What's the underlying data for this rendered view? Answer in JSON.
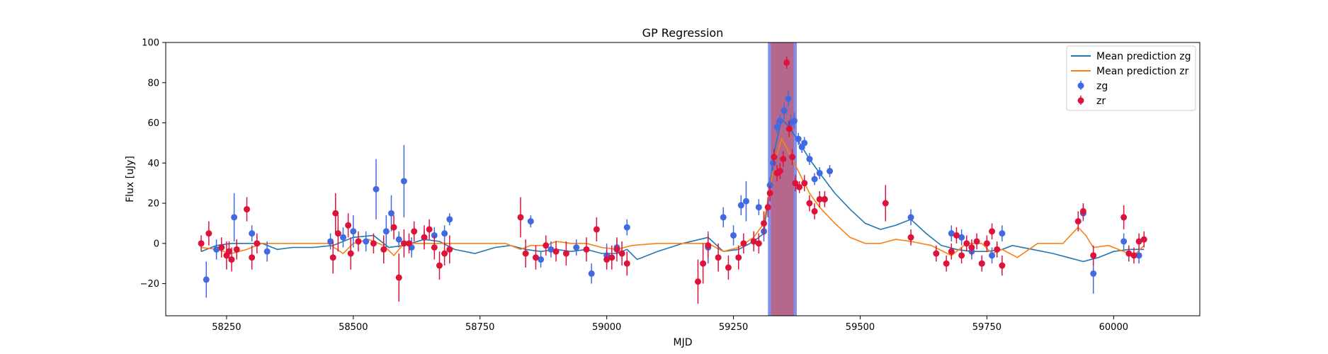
{
  "chart_data": {
    "type": "scatter",
    "title": "GP Regression",
    "xlabel": "MJD",
    "ylabel": "Flux [uJy]",
    "xlim": [
      58130,
      60170
    ],
    "ylim": [
      -36,
      100
    ],
    "xticks": [
      58250,
      58500,
      58750,
      59000,
      59250,
      59500,
      59750,
      60000
    ],
    "yticks": [
      -20,
      0,
      20,
      40,
      60,
      80,
      100
    ],
    "grid": false,
    "legend_position": "top-right",
    "legend": [
      "Mean prediction zg",
      "Mean prediction zr",
      "zg",
      "zr"
    ],
    "shaded_regions": [
      {
        "x0": 59318,
        "x1": 59375,
        "color": "#6a7ef0"
      },
      {
        "x0": 59324,
        "x1": 59369,
        "color": "#c0607a"
      }
    ],
    "series": [
      {
        "name": "Mean prediction zg",
        "kind": "line",
        "color": "#1f77b4",
        "x": [
          58200,
          58230,
          58260,
          58290,
          58320,
          58350,
          58380,
          58420,
          58460,
          58500,
          58540,
          58570,
          58600,
          58640,
          58670,
          58700,
          58740,
          58780,
          58810,
          58840,
          58870,
          58900,
          58930,
          58960,
          58990,
          59020,
          59040,
          59060,
          59100,
          59150,
          59200,
          59230,
          59260,
          59290,
          59310,
          59330,
          59345,
          59360,
          59380,
          59400,
          59420,
          59450,
          59480,
          59510,
          59540,
          59570,
          59600,
          59630,
          59660,
          59690,
          59720,
          59750,
          59780,
          59800,
          59840,
          59880,
          59910,
          59940,
          59970,
          60000,
          60030,
          60060
        ],
        "y": [
          -4,
          -1,
          0,
          0,
          0,
          -3,
          -2,
          -2,
          -1,
          3,
          4,
          -2,
          -1,
          2,
          1,
          -3,
          -5,
          -2,
          -1,
          -3,
          -4,
          -3,
          -4,
          -3,
          -5,
          -5,
          -3,
          -8,
          -4,
          0,
          3,
          -4,
          -3,
          1,
          5,
          45,
          62,
          58,
          50,
          42,
          35,
          25,
          17,
          10,
          7,
          9,
          12,
          5,
          -1,
          -3,
          -4,
          -4,
          -3,
          -1,
          -3,
          -5,
          -7,
          -9,
          -7,
          -4,
          -3,
          -3
        ]
      },
      {
        "name": "Mean prediction zr",
        "kind": "line",
        "color": "#ff7f0e",
        "x": [
          58200,
          58230,
          58260,
          58290,
          58320,
          58350,
          58400,
          58450,
          58480,
          58500,
          58530,
          58560,
          58580,
          58600,
          58640,
          58670,
          58700,
          58750,
          58800,
          58830,
          58850,
          58880,
          58900,
          58930,
          58960,
          58990,
          59020,
          59050,
          59100,
          59150,
          59200,
          59230,
          59260,
          59290,
          59310,
          59330,
          59345,
          59360,
          59380,
          59400,
          59420,
          59450,
          59480,
          59510,
          59540,
          59570,
          59600,
          59640,
          59680,
          59710,
          59740,
          59760,
          59780,
          59810,
          59850,
          59900,
          59930,
          59945,
          59960,
          59990,
          60020,
          60040,
          60060
        ],
        "y": [
          -2,
          -3,
          -5,
          -3,
          0,
          0,
          0,
          0,
          -5,
          0,
          2,
          -1,
          -6,
          0,
          0,
          0,
          0,
          0,
          0,
          -3,
          -1,
          -1,
          1,
          0,
          0,
          -2,
          -3,
          -1,
          0,
          0,
          0,
          -4,
          -2,
          3,
          10,
          40,
          52,
          45,
          35,
          25,
          18,
          10,
          3,
          0,
          0,
          2,
          1,
          -1,
          -6,
          0,
          0,
          -5,
          -3,
          -7,
          0,
          0,
          8,
          4,
          -2,
          -1,
          -4,
          -6,
          -1
        ]
      },
      {
        "name": "zg",
        "kind": "errorbar",
        "color": "#4169e1",
        "x": [
          58210,
          58230,
          58265,
          58300,
          58330,
          58455,
          58480,
          58500,
          58525,
          58545,
          58565,
          58575,
          58590,
          58600,
          58615,
          58640,
          58660,
          58680,
          58690,
          58850,
          58870,
          58890,
          58940,
          58970,
          59000,
          59020,
          59040,
          59200,
          59230,
          59250,
          59265,
          59275,
          59300,
          59310,
          59322,
          59328,
          59336,
          59342,
          59350,
          59358,
          59363,
          59370,
          59378,
          59385,
          59390,
          59400,
          59410,
          59420,
          59430,
          59440,
          59600,
          59680,
          59700,
          59720,
          59740,
          59760,
          59780,
          59940,
          59960,
          60020,
          60050
        ],
        "y": [
          -18,
          -3,
          13,
          5,
          -4,
          1,
          3,
          6,
          1,
          27,
          6,
          15,
          2,
          31,
          -2,
          3,
          4,
          5,
          12,
          11,
          -8,
          -3,
          -2,
          -15,
          -6,
          -2,
          8,
          -2,
          13,
          4,
          19,
          21,
          18,
          6,
          29,
          40,
          58,
          61,
          66,
          72,
          60,
          61,
          52,
          48,
          50,
          42,
          32,
          35,
          22,
          36,
          13,
          5,
          3,
          -4,
          -10,
          -6,
          5,
          15,
          -15,
          1,
          -6
        ],
        "err": [
          9,
          5,
          12,
          4,
          5,
          4,
          5,
          8,
          5,
          15,
          8,
          9,
          4,
          18,
          5,
          4,
          4,
          4,
          3,
          3,
          4,
          4,
          4,
          5,
          6,
          4,
          4,
          8,
          5,
          5,
          5,
          10,
          4,
          5,
          4,
          4,
          3,
          3,
          4,
          4,
          4,
          4,
          3,
          3,
          3,
          3,
          3,
          3,
          3,
          3,
          4,
          4,
          4,
          4,
          4,
          4,
          4,
          4,
          10,
          4,
          4
        ]
      },
      {
        "name": "zr",
        "kind": "errorbar",
        "color": "#dc143c",
        "x": [
          58200,
          58215,
          58240,
          58250,
          58255,
          58260,
          58270,
          58290,
          58300,
          58310,
          58460,
          58465,
          58470,
          58490,
          58495,
          58510,
          58540,
          58560,
          58580,
          58590,
          58600,
          58610,
          58620,
          58640,
          58650,
          58660,
          58670,
          58680,
          58690,
          58830,
          58840,
          58860,
          58880,
          58900,
          58920,
          58960,
          58980,
          59000,
          59010,
          59020,
          59030,
          59040,
          59180,
          59190,
          59200,
          59220,
          59240,
          59260,
          59270,
          59290,
          59300,
          59310,
          59318,
          59322,
          59330,
          59336,
          59342,
          59348,
          59355,
          59360,
          59366,
          59372,
          59380,
          59390,
          59400,
          59410,
          59420,
          59430,
          59550,
          59600,
          59650,
          59670,
          59680,
          59690,
          59700,
          59710,
          59720,
          59730,
          59740,
          59750,
          59760,
          59770,
          59780,
          59930,
          59940,
          59960,
          60020,
          60030,
          60040,
          60050,
          60060
        ],
        "y": [
          0,
          5,
          -2,
          -6,
          -4,
          -8,
          -3,
          17,
          -7,
          0,
          -7,
          15,
          5,
          9,
          -5,
          1,
          0,
          -3,
          8,
          -17,
          0,
          0,
          6,
          3,
          7,
          -2,
          -11,
          -5,
          -3,
          13,
          -5,
          -7,
          -1,
          -4,
          -5,
          -3,
          7,
          -8,
          -7,
          -3,
          -5,
          -10,
          -19,
          -10,
          -1,
          -7,
          -12,
          -7,
          0,
          1,
          0,
          10,
          18,
          25,
          43,
          35,
          36,
          42,
          90,
          57,
          43,
          30,
          28,
          30,
          20,
          16,
          22,
          22,
          20,
          3,
          -5,
          -10,
          -4,
          4,
          -6,
          0,
          -2,
          1,
          -10,
          0,
          6,
          -3,
          -11,
          11,
          16,
          -6,
          13,
          -5,
          -6,
          1,
          2
        ],
        "err": [
          4,
          6,
          5,
          7,
          5,
          6,
          5,
          6,
          6,
          5,
          8,
          10,
          9,
          6,
          8,
          5,
          5,
          7,
          6,
          12,
          7,
          5,
          5,
          6,
          5,
          6,
          7,
          6,
          7,
          10,
          7,
          6,
          5,
          5,
          6,
          6,
          6,
          5,
          6,
          6,
          6,
          6,
          11,
          10,
          6,
          7,
          6,
          6,
          5,
          5,
          5,
          6,
          5,
          4,
          4,
          4,
          4,
          4,
          3,
          4,
          4,
          4,
          3,
          4,
          4,
          4,
          4,
          4,
          9,
          4,
          4,
          4,
          4,
          4,
          4,
          4,
          4,
          4,
          4,
          4,
          4,
          4,
          5,
          5,
          4,
          5,
          6,
          4,
          4,
          4,
          4
        ]
      }
    ]
  }
}
